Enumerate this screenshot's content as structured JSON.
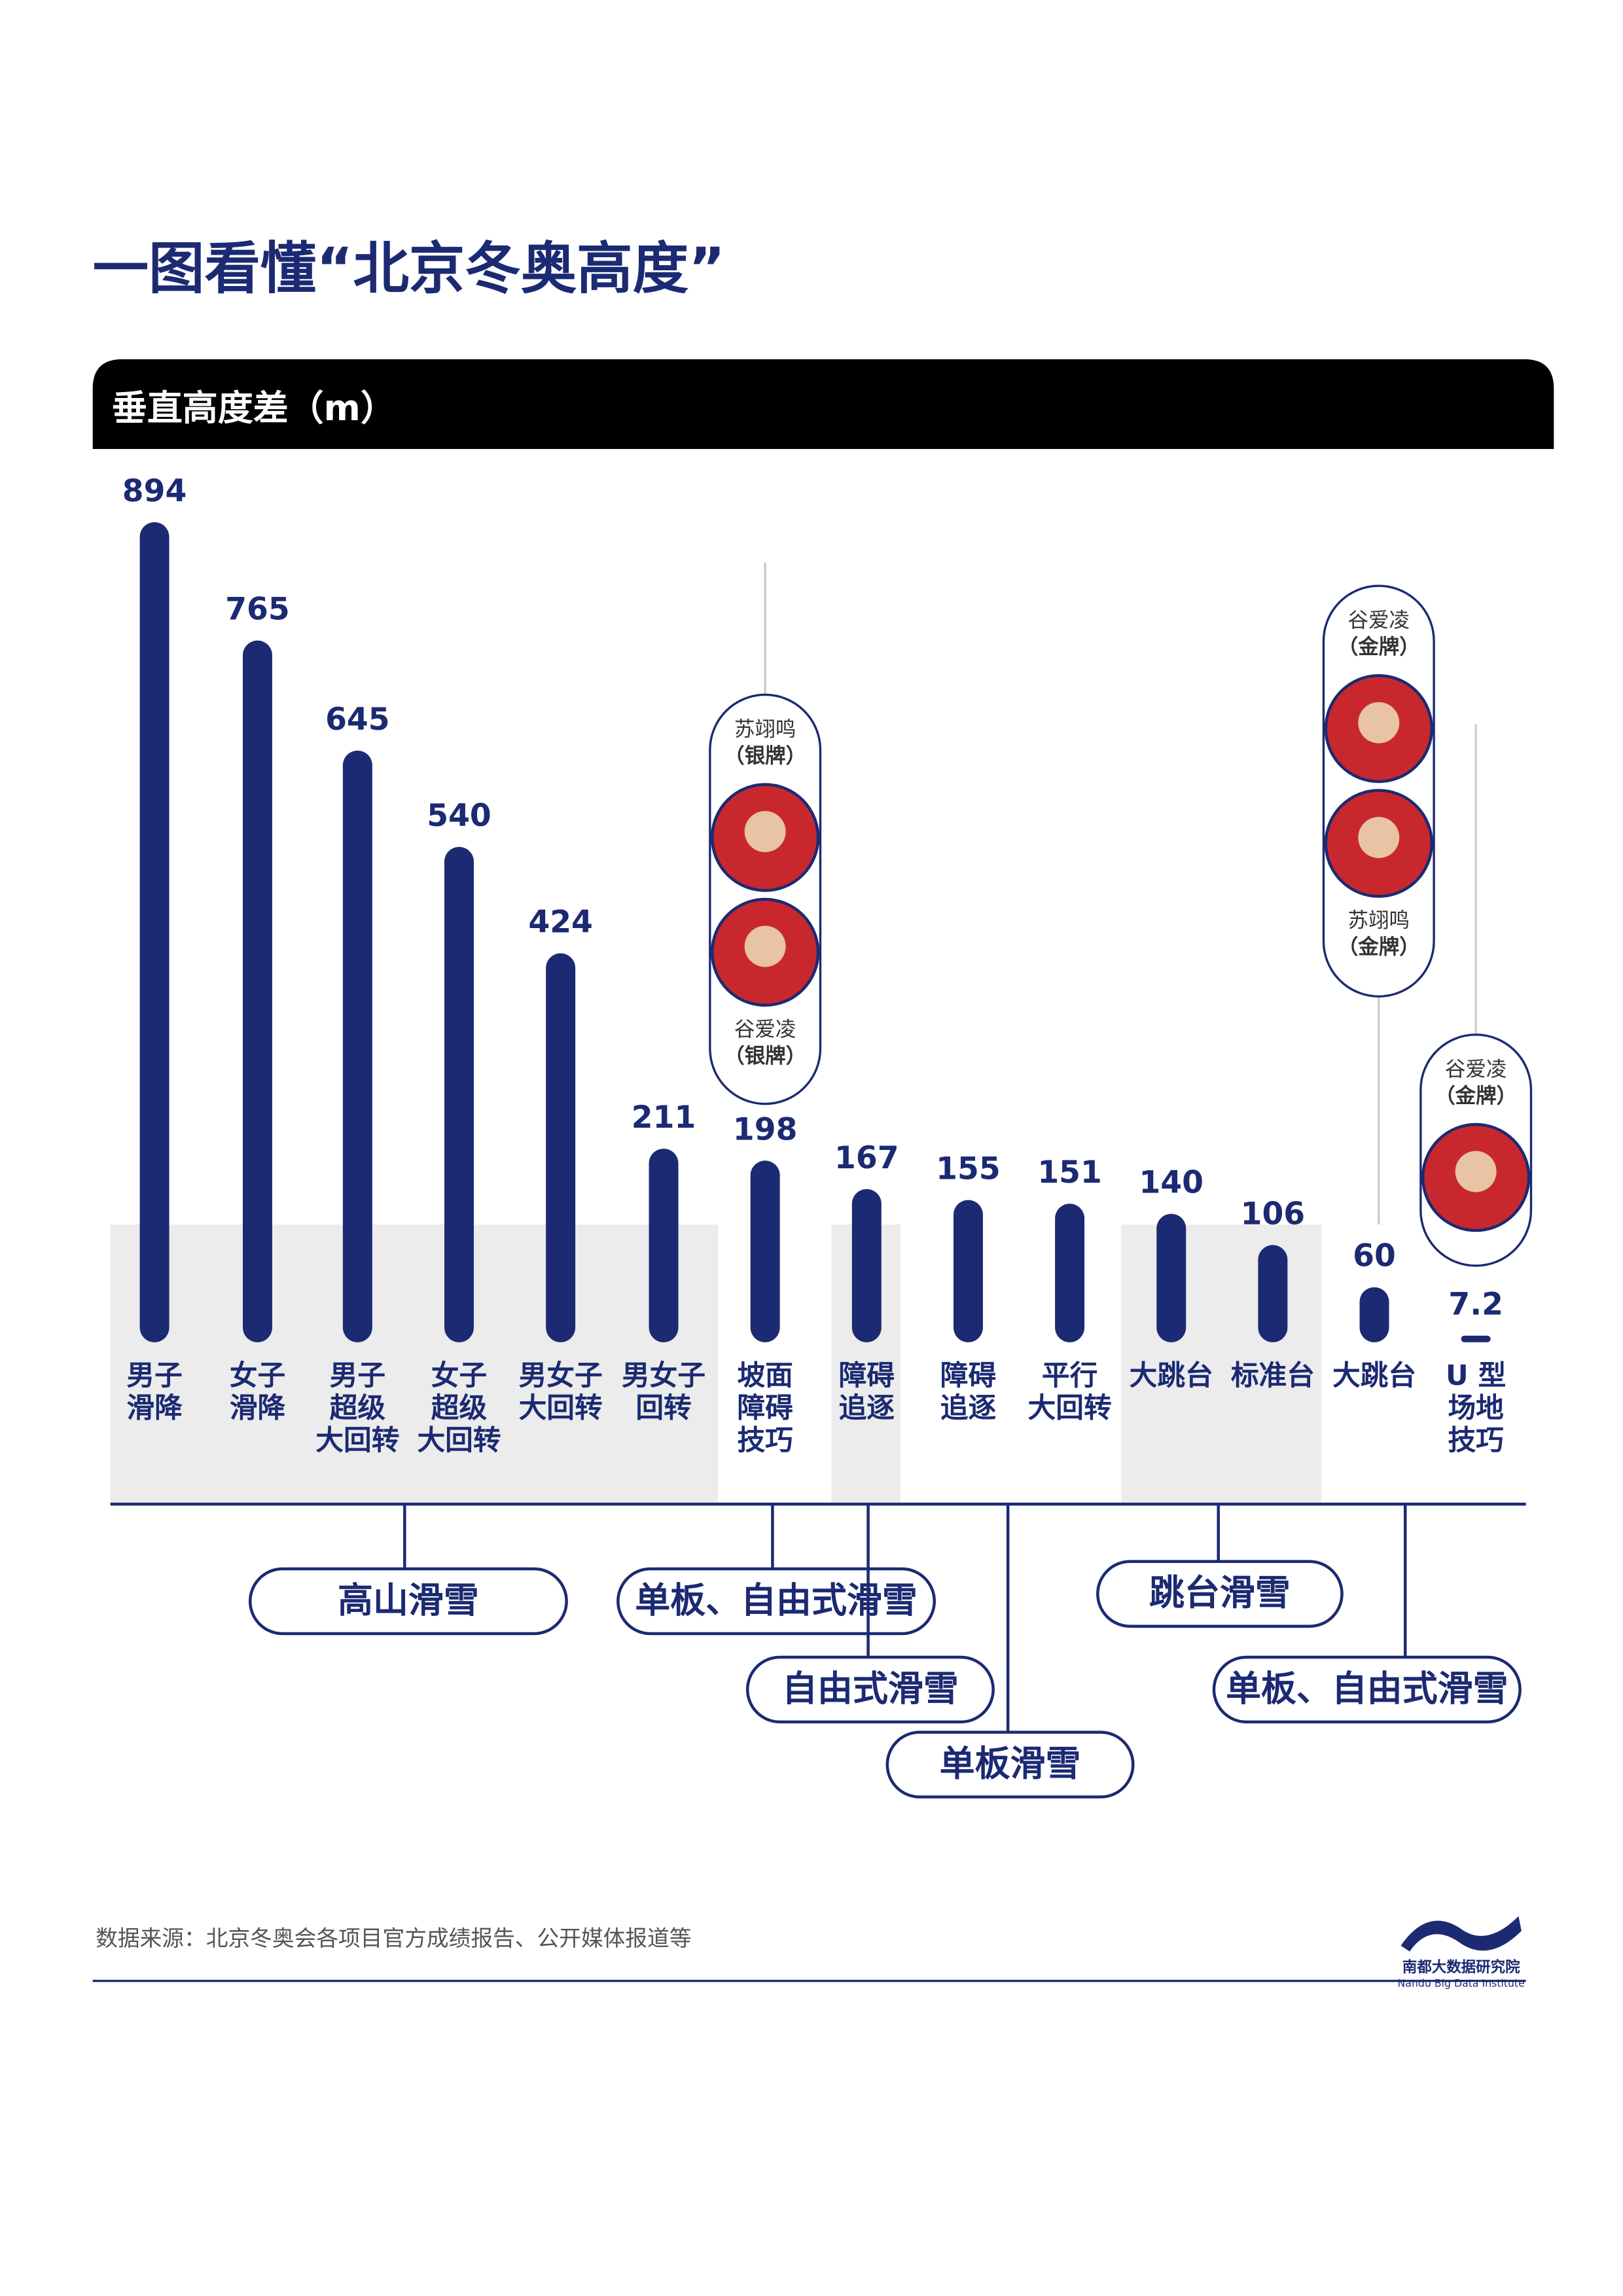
{
  "chart_data": {
    "type": "bar",
    "title": "一图看懂“北京冬奥高度”",
    "subtitle": "垂直高度差（m）",
    "categories": [
      [
        "男子",
        "滑降"
      ],
      [
        "女子",
        "滑降"
      ],
      [
        "男子",
        "超级",
        "大回转"
      ],
      [
        "女子",
        "超级",
        "大回转"
      ],
      [
        "男女子",
        "大回转"
      ],
      [
        "男女子",
        "回转"
      ],
      [
        "坡面",
        "障碍",
        "技巧"
      ],
      [
        "障碍",
        "追逐"
      ],
      [
        "障碍",
        "追逐"
      ],
      [
        "平行",
        "大回转"
      ],
      [
        "大跳台"
      ],
      [
        "标准台"
      ],
      [
        "大跳台"
      ],
      [
        "U 型",
        "场地",
        "技巧"
      ]
    ],
    "values": [
      894,
      765,
      645,
      540,
      424,
      211,
      198,
      167,
      155,
      151,
      140,
      106,
      60,
      7.2
    ],
    "color": "#1b2a72",
    "ylim": [
      0,
      900
    ],
    "groups": [
      "高山滑雪",
      "单板、自由式滑雪",
      "自由式滑雪",
      "单板滑雪",
      "跳台滑雪",
      "单板、自由式滑雪"
    ],
    "callouts": [
      [
        {
          "name": "苏翊鸣",
          "medal": "（银牌）"
        },
        {
          "name": "谷爱凌",
          "medal": "（银牌）"
        }
      ],
      [
        {
          "name": "谷爱凌",
          "medal": "（金牌）"
        },
        {
          "name": "苏翊鸣",
          "medal": "（金牌）"
        }
      ],
      [
        {
          "name": "谷爱凌",
          "medal": "（金牌）"
        }
      ]
    ],
    "source": "数据来源：北京冬奥会各项目官方成绩报告、公开媒体报道等",
    "logo": {
      "name": "南都大数据研究院",
      "english": "Nandu Big Data Institute"
    }
  }
}
